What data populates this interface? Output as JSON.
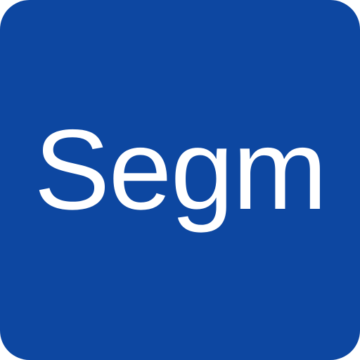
{
  "icon": {
    "label": "Segm",
    "background_color": "#0D47A1",
    "text_color": "#FFFFFF"
  }
}
